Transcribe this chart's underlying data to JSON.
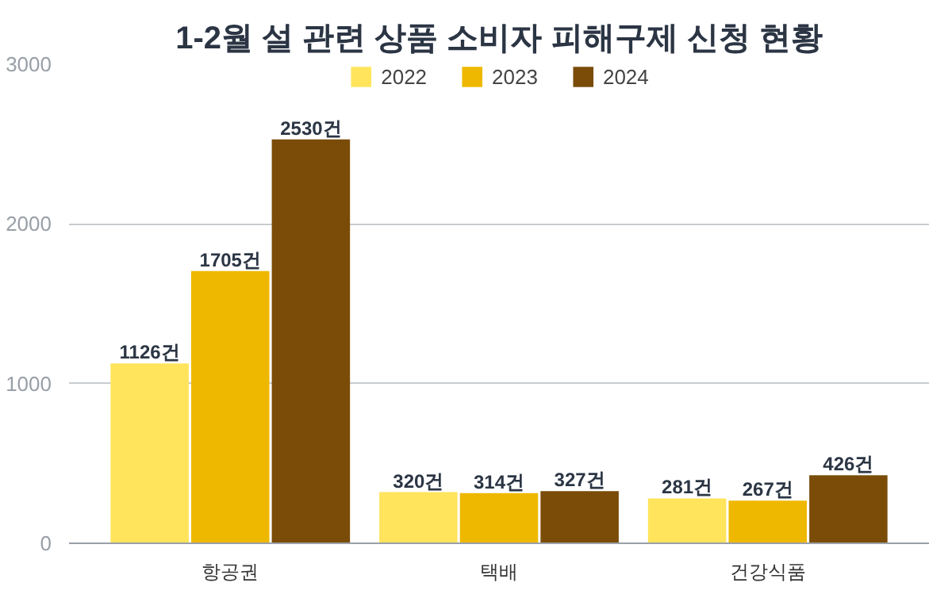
{
  "chart_data": {
    "type": "bar",
    "title": "1-2월 설 관련 상품 소비자 피해구제 신청 현황",
    "categories": [
      "항공권",
      "택배",
      "건강식품"
    ],
    "series": [
      {
        "name": "2022",
        "color": "#ffe45c",
        "values": [
          1126,
          320,
          281
        ],
        "value_labels": [
          "1126건",
          "320건",
          "281건"
        ]
      },
      {
        "name": "2023",
        "color": "#efb800",
        "values": [
          1705,
          314,
          267
        ],
        "value_labels": [
          "1705건",
          "314건",
          "267건"
        ]
      },
      {
        "name": "2024",
        "color": "#7a4c08",
        "values": [
          2530,
          327,
          426
        ],
        "value_labels": [
          "2530건",
          "327건",
          "426건"
        ]
      }
    ],
    "ylim": [
      0,
      3000
    ],
    "yticks": [
      0,
      1000,
      2000,
      3000
    ],
    "grid": "y",
    "legend": "top"
  }
}
